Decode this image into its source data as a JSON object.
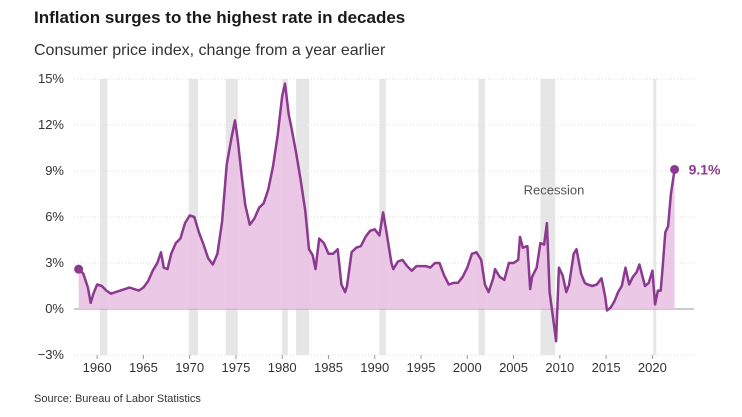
{
  "title": "Inflation surges to the highest rate in decades",
  "subtitle": "Consumer price index, change from a year earlier",
  "source": "Source: Bureau of Labor Statistics",
  "colors": {
    "line": "#8b3a8f",
    "fill": "#e8c2e3",
    "recession": "#e6e6e6",
    "grid": "#dddddd",
    "axis": "#999999",
    "text": "#333333"
  },
  "chart_data": {
    "type": "area",
    "title": "Inflation surges to the highest rate in decades",
    "subtitle": "Consumer price index, change from a year earlier",
    "xlabel": "",
    "ylabel": "",
    "xlim": [
      1957.5,
      2024.5
    ],
    "ylim": [
      -3,
      15
    ],
    "y_ticks": [
      -3,
      0,
      3,
      6,
      9,
      12,
      15
    ],
    "y_tick_labels": [
      "−3%",
      "0%",
      "3%",
      "6%",
      "9%",
      "12%",
      "15%"
    ],
    "x_ticks": [
      1960,
      1965,
      1970,
      1975,
      1980,
      1985,
      1990,
      1995,
      2000,
      2005,
      2010,
      2015,
      2020
    ],
    "x_tick_labels": [
      "1960",
      "1965",
      "1970",
      "1975",
      "1980",
      "1985",
      "1990",
      "1995",
      "2000",
      "2005",
      "2010",
      "2015",
      "2020"
    ],
    "grid": true,
    "recession_label": "Recession",
    "recessions": [
      [
        1960.3,
        1961.1
      ],
      [
        1969.9,
        1970.9
      ],
      [
        1973.9,
        1975.2
      ],
      [
        1980.0,
        1980.6
      ],
      [
        1981.5,
        1982.9
      ],
      [
        1990.5,
        1991.2
      ],
      [
        2001.2,
        2001.9
      ],
      [
        2007.9,
        2009.5
      ],
      [
        2020.1,
        2020.4
      ]
    ],
    "end_label": "9.1%",
    "series": [
      {
        "values": [
          [
            1958.0,
            2.6
          ],
          [
            1958.5,
            2.3
          ],
          [
            1959.0,
            1.4
          ],
          [
            1959.3,
            0.4
          ],
          [
            1959.6,
            1.0
          ],
          [
            1960.0,
            1.6
          ],
          [
            1960.5,
            1.5
          ],
          [
            1961.0,
            1.2
          ],
          [
            1961.5,
            1.0
          ],
          [
            1962.0,
            1.1
          ],
          [
            1962.5,
            1.2
          ],
          [
            1963.0,
            1.3
          ],
          [
            1963.5,
            1.4
          ],
          [
            1964.0,
            1.3
          ],
          [
            1964.5,
            1.2
          ],
          [
            1965.0,
            1.4
          ],
          [
            1965.5,
            1.8
          ],
          [
            1966.0,
            2.5
          ],
          [
            1966.5,
            3.0
          ],
          [
            1966.9,
            3.7
          ],
          [
            1967.2,
            2.7
          ],
          [
            1967.6,
            2.6
          ],
          [
            1968.0,
            3.6
          ],
          [
            1968.5,
            4.3
          ],
          [
            1969.0,
            4.6
          ],
          [
            1969.5,
            5.6
          ],
          [
            1970.0,
            6.1
          ],
          [
            1970.5,
            6.0
          ],
          [
            1971.0,
            5.0
          ],
          [
            1971.5,
            4.2
          ],
          [
            1972.0,
            3.3
          ],
          [
            1972.5,
            2.9
          ],
          [
            1973.0,
            3.6
          ],
          [
            1973.5,
            5.7
          ],
          [
            1974.0,
            9.4
          ],
          [
            1974.5,
            11.1
          ],
          [
            1974.9,
            12.3
          ],
          [
            1975.2,
            11.0
          ],
          [
            1975.6,
            8.8
          ],
          [
            1976.0,
            6.8
          ],
          [
            1976.5,
            5.5
          ],
          [
            1977.0,
            5.9
          ],
          [
            1977.5,
            6.6
          ],
          [
            1978.0,
            6.9
          ],
          [
            1978.5,
            7.8
          ],
          [
            1979.0,
            9.3
          ],
          [
            1979.5,
            11.3
          ],
          [
            1980.0,
            13.9
          ],
          [
            1980.3,
            14.7
          ],
          [
            1980.7,
            12.7
          ],
          [
            1981.0,
            11.8
          ],
          [
            1981.5,
            10.2
          ],
          [
            1982.0,
            8.4
          ],
          [
            1982.5,
            6.4
          ],
          [
            1982.9,
            3.9
          ],
          [
            1983.3,
            3.5
          ],
          [
            1983.6,
            2.6
          ],
          [
            1984.0,
            4.6
          ],
          [
            1984.5,
            4.3
          ],
          [
            1985.0,
            3.6
          ],
          [
            1985.5,
            3.6
          ],
          [
            1986.0,
            3.9
          ],
          [
            1986.4,
            1.6
          ],
          [
            1986.8,
            1.1
          ],
          [
            1987.0,
            1.5
          ],
          [
            1987.5,
            3.7
          ],
          [
            1988.0,
            4.0
          ],
          [
            1988.5,
            4.1
          ],
          [
            1989.0,
            4.7
          ],
          [
            1989.5,
            5.1
          ],
          [
            1990.0,
            5.2
          ],
          [
            1990.5,
            4.8
          ],
          [
            1990.9,
            6.3
          ],
          [
            1991.3,
            4.9
          ],
          [
            1991.8,
            3.0
          ],
          [
            1992.0,
            2.6
          ],
          [
            1992.5,
            3.1
          ],
          [
            1993.0,
            3.2
          ],
          [
            1993.5,
            2.8
          ],
          [
            1994.0,
            2.5
          ],
          [
            1994.5,
            2.8
          ],
          [
            1995.0,
            2.8
          ],
          [
            1995.5,
            2.8
          ],
          [
            1996.0,
            2.7
          ],
          [
            1996.5,
            3.0
          ],
          [
            1997.0,
            3.0
          ],
          [
            1997.5,
            2.2
          ],
          [
            1998.0,
            1.6
          ],
          [
            1998.5,
            1.7
          ],
          [
            1999.0,
            1.7
          ],
          [
            1999.5,
            2.1
          ],
          [
            2000.0,
            2.7
          ],
          [
            2000.5,
            3.6
          ],
          [
            2001.0,
            3.7
          ],
          [
            2001.5,
            3.2
          ],
          [
            2001.9,
            1.6
          ],
          [
            2002.3,
            1.1
          ],
          [
            2002.8,
            2.0
          ],
          [
            2003.0,
            2.6
          ],
          [
            2003.5,
            2.1
          ],
          [
            2004.0,
            1.9
          ],
          [
            2004.5,
            3.0
          ],
          [
            2005.0,
            3.0
          ],
          [
            2005.5,
            3.2
          ],
          [
            2005.7,
            4.7
          ],
          [
            2006.0,
            4.0
          ],
          [
            2006.5,
            4.1
          ],
          [
            2006.8,
            1.3
          ],
          [
            2007.0,
            2.1
          ],
          [
            2007.5,
            2.7
          ],
          [
            2007.9,
            4.3
          ],
          [
            2008.3,
            4.2
          ],
          [
            2008.6,
            5.6
          ],
          [
            2008.9,
            1.1
          ],
          [
            2009.3,
            -0.7
          ],
          [
            2009.6,
            -2.1
          ],
          [
            2009.9,
            2.7
          ],
          [
            2010.3,
            2.2
          ],
          [
            2010.7,
            1.1
          ],
          [
            2011.0,
            1.6
          ],
          [
            2011.5,
            3.6
          ],
          [
            2011.8,
            3.9
          ],
          [
            2012.3,
            2.3
          ],
          [
            2012.7,
            1.7
          ],
          [
            2013.0,
            1.6
          ],
          [
            2013.5,
            1.5
          ],
          [
            2014.0,
            1.6
          ],
          [
            2014.5,
            2.0
          ],
          [
            2014.9,
            0.8
          ],
          [
            2015.1,
            -0.1
          ],
          [
            2015.5,
            0.1
          ],
          [
            2015.9,
            0.5
          ],
          [
            2016.3,
            1.1
          ],
          [
            2016.7,
            1.5
          ],
          [
            2017.1,
            2.7
          ],
          [
            2017.5,
            1.6
          ],
          [
            2017.9,
            2.1
          ],
          [
            2018.3,
            2.4
          ],
          [
            2018.6,
            2.9
          ],
          [
            2018.9,
            2.2
          ],
          [
            2019.2,
            1.5
          ],
          [
            2019.6,
            1.7
          ],
          [
            2020.0,
            2.5
          ],
          [
            2020.3,
            0.3
          ],
          [
            2020.6,
            1.2
          ],
          [
            2020.9,
            1.2
          ],
          [
            2021.1,
            2.6
          ],
          [
            2021.4,
            5.0
          ],
          [
            2021.7,
            5.4
          ],
          [
            2022.0,
            7.5
          ],
          [
            2022.4,
            9.1
          ]
        ]
      }
    ]
  }
}
